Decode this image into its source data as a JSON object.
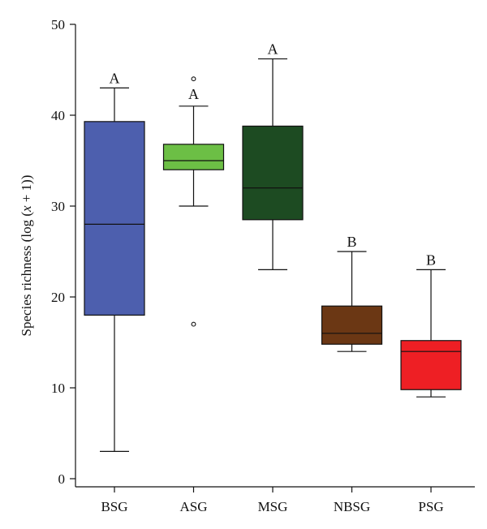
{
  "chart_data": {
    "type": "boxplot",
    "ylabel_prefix": "Species richness (log (",
    "ylabel_var": "x",
    "ylabel_suffix": " + 1))",
    "xlabel": "",
    "ylim": [
      0,
      50
    ],
    "yticks": [
      0,
      10,
      20,
      30,
      40,
      50
    ],
    "grid": false,
    "categories": [
      "BSG",
      "ASG",
      "MSG",
      "NBSG",
      "PSG"
    ],
    "boxes": [
      {
        "name": "BSG",
        "whisker_low": 3,
        "q1": 18,
        "median": 28,
        "q3": 39.3,
        "whisker_high": 43,
        "outliers": [],
        "letter": "A",
        "color": "#4d5fae"
      },
      {
        "name": "ASG",
        "whisker_low": 30,
        "q1": 34,
        "median": 35,
        "q3": 36.8,
        "whisker_high": 41,
        "outliers": [
          17,
          44
        ],
        "letter": "A",
        "color": "#6cbf45"
      },
      {
        "name": "MSG",
        "whisker_low": 23,
        "q1": 28.5,
        "median": 32,
        "q3": 38.8,
        "whisker_high": 46.2,
        "outliers": [],
        "letter": "A",
        "color": "#1d4b22"
      },
      {
        "name": "NBSG",
        "whisker_low": 14,
        "q1": 14.8,
        "median": 16,
        "q3": 19,
        "whisker_high": 25,
        "outliers": [],
        "letter": "B",
        "color": "#6b3714"
      },
      {
        "name": "PSG",
        "whisker_low": 9,
        "q1": 9.8,
        "median": 14,
        "q3": 15.2,
        "whisker_high": 23,
        "outliers": [],
        "letter": "B",
        "color": "#ee1f24"
      }
    ]
  }
}
